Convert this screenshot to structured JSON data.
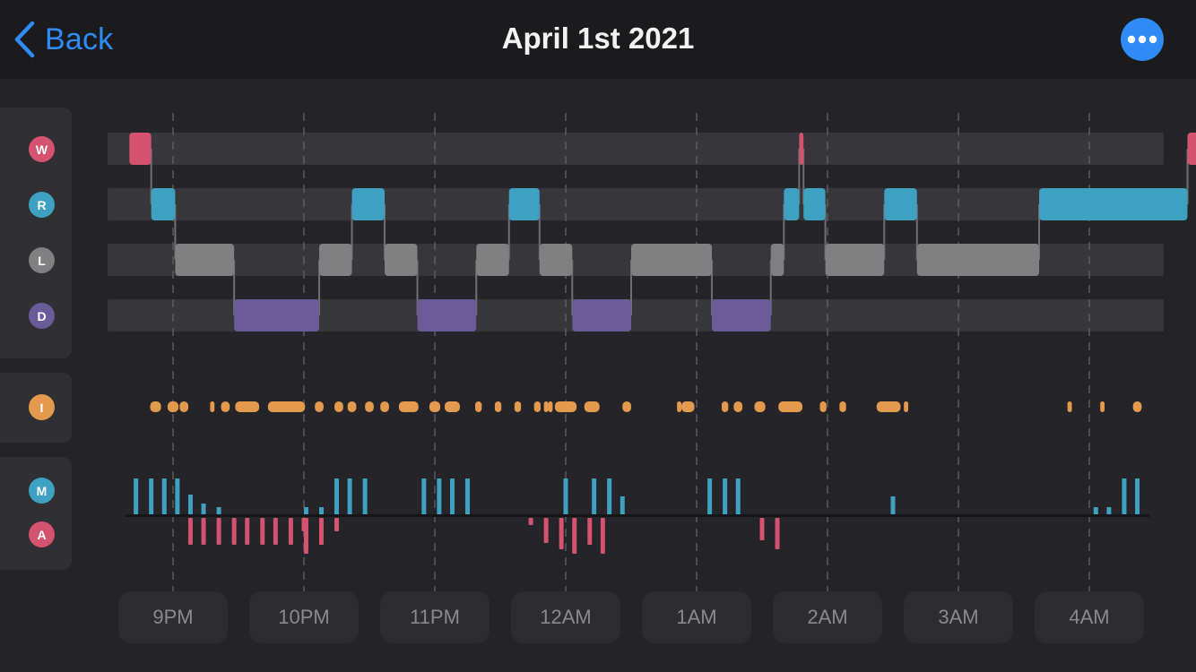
{
  "header": {
    "back_label": "Back",
    "title": "April 1st 2021",
    "more_icon": "ellipsis-icon"
  },
  "colors": {
    "accent": "#2f8cf6",
    "wake": "#d4536e",
    "rem": "#3fa1c1",
    "light": "#808080",
    "deep": "#6b5c99",
    "interruption": "#e39a4e",
    "movement": "#3fa1c1",
    "activity": "#d4536e"
  },
  "legend": {
    "stages": [
      {
        "key": "W",
        "label": "W",
        "color": "#d4536e"
      },
      {
        "key": "R",
        "label": "R",
        "color": "#3fa1c1"
      },
      {
        "key": "L",
        "label": "L",
        "color": "#808080"
      },
      {
        "key": "D",
        "label": "D",
        "color": "#6b5c99"
      }
    ],
    "interruptions": {
      "label": "I",
      "color": "#e39a4e"
    },
    "movement": {
      "label": "M",
      "color": "#3fa1c1"
    },
    "activity": {
      "label": "A",
      "color": "#d4536e"
    }
  },
  "chart_data": {
    "type": "timeline",
    "x_axis": {
      "start": "8:33PM",
      "end": "4:53AM",
      "ticks": [
        "9PM",
        "10PM",
        "11PM",
        "12AM",
        "1AM",
        "2AM",
        "3AM",
        "4AM"
      ],
      "grid": "dashed-vertical"
    },
    "hypnogram": [
      {
        "stage": "W",
        "start": "8:40PM",
        "end": "8:50PM"
      },
      {
        "stage": "R",
        "start": "8:50PM",
        "end": "9:01PM"
      },
      {
        "stage": "L",
        "start": "9:01PM",
        "end": "9:28PM"
      },
      {
        "stage": "D",
        "start": "9:28PM",
        "end": "10:07PM"
      },
      {
        "stage": "L",
        "start": "10:07PM",
        "end": "10:22PM"
      },
      {
        "stage": "R",
        "start": "10:22PM",
        "end": "10:37PM"
      },
      {
        "stage": "L",
        "start": "10:37PM",
        "end": "10:52PM"
      },
      {
        "stage": "D",
        "start": "10:52PM",
        "end": "11:19PM"
      },
      {
        "stage": "L",
        "start": "11:19PM",
        "end": "11:34PM"
      },
      {
        "stage": "R",
        "start": "11:34PM",
        "end": "11:48PM"
      },
      {
        "stage": "L",
        "start": "11:48PM",
        "end": "12:03AM"
      },
      {
        "stage": "D",
        "start": "12:03AM",
        "end": "12:30AM"
      },
      {
        "stage": "L",
        "start": "12:30AM",
        "end": "1:07AM"
      },
      {
        "stage": "D",
        "start": "1:07AM",
        "end": "1:34AM"
      },
      {
        "stage": "L",
        "start": "1:34AM",
        "end": "1:40AM"
      },
      {
        "stage": "R",
        "start": "1:40AM",
        "end": "1:47AM"
      },
      {
        "stage": "W",
        "start": "1:47AM",
        "end": "1:49AM"
      },
      {
        "stage": "R",
        "start": "1:49AM",
        "end": "1:59AM"
      },
      {
        "stage": "L",
        "start": "1:59AM",
        "end": "2:26AM"
      },
      {
        "stage": "R",
        "start": "2:26AM",
        "end": "2:41AM"
      },
      {
        "stage": "L",
        "start": "2:41AM",
        "end": "3:37AM"
      },
      {
        "stage": "R",
        "start": "3:37AM",
        "end": "4:45AM"
      },
      {
        "stage": "W",
        "start": "4:45AM",
        "end": "4:59AM"
      }
    ],
    "interruptions": [
      [
        "8:52PM",
        5
      ],
      [
        "9:00PM",
        5
      ],
      [
        "9:05PM",
        4
      ],
      [
        "9:18PM",
        2
      ],
      [
        "9:24PM",
        4
      ],
      [
        "9:34PM",
        11
      ],
      [
        "9:52PM",
        17
      ],
      [
        "10:07PM",
        4
      ],
      [
        "10:16PM",
        4
      ],
      [
        "10:22PM",
        4
      ],
      [
        "10:30PM",
        4
      ],
      [
        "10:37PM",
        4
      ],
      [
        "10:48PM",
        9
      ],
      [
        "11:00PM",
        5
      ],
      [
        "11:08PM",
        7
      ],
      [
        "11:20PM",
        3
      ],
      [
        "11:29PM",
        3
      ],
      [
        "11:38PM",
        3
      ],
      [
        "11:47PM",
        3
      ],
      [
        "11:51PM",
        2
      ],
      [
        "11:53PM",
        2
      ],
      [
        "12:00AM",
        10
      ],
      [
        "12:12AM",
        7
      ],
      [
        "12:28AM",
        4
      ],
      [
        "12:52AM",
        2
      ],
      [
        "12:56AM",
        6
      ],
      [
        "1:13AM",
        3
      ],
      [
        "1:19AM",
        4
      ],
      [
        "1:29AM",
        5
      ],
      [
        "1:43AM",
        11
      ],
      [
        "1:58AM",
        3
      ],
      [
        "2:07AM",
        3
      ],
      [
        "2:28AM",
        11
      ],
      [
        "2:36AM",
        2
      ],
      [
        "3:51AM",
        2
      ],
      [
        "4:06AM",
        2
      ],
      [
        "4:22AM",
        4
      ]
    ],
    "movement": [
      [
        "8:43PM",
        40
      ],
      [
        "8:50PM",
        40
      ],
      [
        "8:56PM",
        40
      ],
      [
        "9:02PM",
        40
      ],
      [
        "9:08PM",
        22
      ],
      [
        "9:14PM",
        12
      ],
      [
        "9:21PM",
        8
      ],
      [
        "10:01PM",
        8
      ],
      [
        "10:08PM",
        8
      ],
      [
        "10:15PM",
        40
      ],
      [
        "10:21PM",
        40
      ],
      [
        "10:28PM",
        40
      ],
      [
        "10:55PM",
        40
      ],
      [
        "11:02PM",
        40
      ],
      [
        "11:08PM",
        40
      ],
      [
        "11:15PM",
        40
      ],
      [
        "12:00AM",
        40
      ],
      [
        "12:13AM",
        40
      ],
      [
        "12:20AM",
        40
      ],
      [
        "12:26AM",
        20
      ],
      [
        "1:06AM",
        40
      ],
      [
        "1:13AM",
        40
      ],
      [
        "1:19AM",
        40
      ],
      [
        "2:30AM",
        20
      ],
      [
        "4:03AM",
        8
      ],
      [
        "4:09AM",
        8
      ],
      [
        "4:16AM",
        40
      ],
      [
        "4:22AM",
        40
      ]
    ],
    "activity": [
      [
        "9:08PM",
        30
      ],
      [
        "9:14PM",
        30
      ],
      [
        "9:21PM",
        30
      ],
      [
        "9:28PM",
        30
      ],
      [
        "9:34PM",
        30
      ],
      [
        "9:41PM",
        30
      ],
      [
        "9:47PM",
        30
      ],
      [
        "9:54PM",
        30
      ],
      [
        "10:00PM",
        15
      ],
      [
        "10:01PM",
        40
      ],
      [
        "10:08PM",
        30
      ],
      [
        "10:15PM",
        15
      ],
      [
        "11:44PM",
        8
      ],
      [
        "11:51PM",
        28
      ],
      [
        "11:58PM",
        35
      ],
      [
        "12:04AM",
        40
      ],
      [
        "12:11AM",
        30
      ],
      [
        "12:17AM",
        40
      ],
      [
        "1:30AM",
        25
      ],
      [
        "1:37AM",
        35
      ]
    ]
  }
}
